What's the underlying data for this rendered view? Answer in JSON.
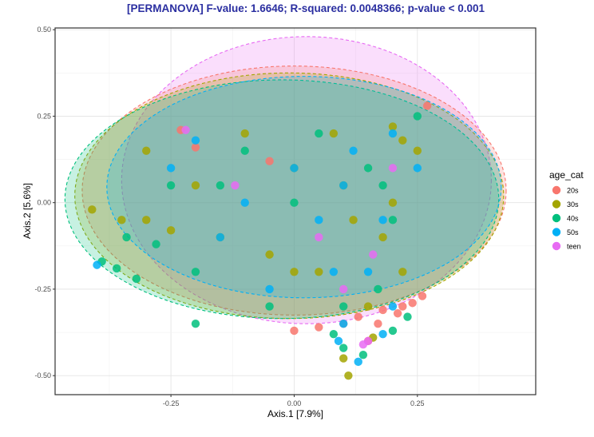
{
  "chart_data": {
    "type": "scatter",
    "title": "[PERMANOVA] F-value: 1.6646; R-squared: 0.0048366; p-value < 0.001",
    "xlabel": "Axis.1   [7.9%]",
    "ylabel": "Axis.2   [5.6%]",
    "xlim": [
      -0.485,
      0.49
    ],
    "ylim": [
      -0.555,
      0.505
    ],
    "xticks": [
      -0.25,
      0.0,
      0.25
    ],
    "xtick_labels": [
      "-0.25",
      "0.00",
      "0.25"
    ],
    "yticks": [
      -0.5,
      -0.25,
      0.0,
      0.25,
      0.5
    ],
    "ytick_labels": [
      "-0.50",
      "-0.25",
      "0.00",
      "0.25",
      "0.50"
    ],
    "grid": true,
    "legend": {
      "title": "age_cat",
      "position": "right",
      "entries": [
        {
          "label": "20s",
          "color": "#F8766D"
        },
        {
          "label": "30s",
          "color": "#A3A500"
        },
        {
          "label": "40s",
          "color": "#00BF7D"
        },
        {
          "label": "50s",
          "color": "#00B0F6"
        },
        {
          "label": "teen",
          "color": "#E76BF3"
        }
      ]
    },
    "ellipses": [
      {
        "group": "teen",
        "cx": 0.025,
        "cy": 0.065,
        "rx": 0.375,
        "ry": 0.415,
        "color": "#E76BF3"
      },
      {
        "group": "20s",
        "cx": 0.0,
        "cy": 0.035,
        "rx": 0.43,
        "ry": 0.36,
        "color": "#F8766D"
      },
      {
        "group": "30s",
        "cx": -0.01,
        "cy": 0.02,
        "rx": 0.435,
        "ry": 0.355,
        "color": "#A3A500"
      },
      {
        "group": "40s",
        "cx": -0.025,
        "cy": 0.01,
        "rx": 0.44,
        "ry": 0.345,
        "color": "#00BF7D"
      },
      {
        "group": "50s",
        "cx": 0.02,
        "cy": 0.045,
        "rx": 0.4,
        "ry": 0.32,
        "color": "#00B0F6"
      }
    ],
    "series": [
      {
        "group": "20s",
        "points": [
          [
            -0.23,
            0.21
          ],
          [
            0.24,
            -0.29
          ],
          [
            0.26,
            -0.27
          ],
          [
            0.22,
            -0.3
          ],
          [
            0.05,
            -0.36
          ],
          [
            0.13,
            -0.33
          ],
          [
            0.18,
            -0.31
          ],
          [
            0.1,
            -0.35
          ],
          [
            -0.2,
            0.16
          ],
          [
            0.0,
            -0.37
          ],
          [
            0.15,
            -0.4
          ],
          [
            0.27,
            0.28
          ],
          [
            0.21,
            -0.32
          ],
          [
            0.17,
            -0.35
          ],
          [
            -0.05,
            0.12
          ]
        ]
      },
      {
        "group": "30s",
        "points": [
          [
            -0.41,
            -0.02
          ],
          [
            -0.35,
            -0.05
          ],
          [
            -0.3,
            0.15
          ],
          [
            -0.2,
            0.05
          ],
          [
            -0.1,
            0.2
          ],
          [
            0.0,
            0.1
          ],
          [
            0.1,
            0.05
          ],
          [
            0.2,
            0.0
          ],
          [
            0.25,
            0.15
          ],
          [
            0.12,
            -0.05
          ],
          [
            -0.15,
            -0.1
          ],
          [
            0.05,
            -0.2
          ],
          [
            0.1,
            -0.45
          ],
          [
            0.11,
            -0.5
          ],
          [
            0.16,
            -0.39
          ],
          [
            0.2,
            0.22
          ],
          [
            0.22,
            0.18
          ],
          [
            -0.25,
            -0.08
          ],
          [
            0.15,
            -0.3
          ],
          [
            0.0,
            -0.2
          ],
          [
            -0.05,
            -0.15
          ],
          [
            0.18,
            -0.1
          ],
          [
            0.22,
            -0.2
          ],
          [
            -0.3,
            -0.05
          ],
          [
            0.08,
            0.2
          ]
        ]
      },
      {
        "group": "40s",
        "points": [
          [
            -0.39,
            -0.17
          ],
          [
            -0.36,
            -0.19
          ],
          [
            -0.32,
            -0.22
          ],
          [
            -0.2,
            -0.35
          ],
          [
            -0.34,
            -0.1
          ],
          [
            0.14,
            -0.44
          ],
          [
            0.2,
            -0.37
          ],
          [
            -0.1,
            0.15
          ],
          [
            0.05,
            0.2
          ],
          [
            -0.2,
            -0.2
          ],
          [
            0.1,
            -0.3
          ],
          [
            -0.15,
            0.05
          ],
          [
            0.15,
            0.1
          ],
          [
            0.25,
            0.25
          ],
          [
            0.2,
            -0.05
          ],
          [
            0.0,
            0.0
          ],
          [
            -0.28,
            -0.12
          ],
          [
            0.1,
            -0.42
          ],
          [
            0.17,
            -0.25
          ],
          [
            -0.05,
            -0.3
          ],
          [
            0.18,
            0.05
          ],
          [
            0.23,
            -0.33
          ],
          [
            -0.25,
            0.05
          ],
          [
            0.08,
            -0.38
          ]
        ]
      },
      {
        "group": "50s",
        "points": [
          [
            -0.4,
            -0.18
          ],
          [
            0.13,
            -0.46
          ],
          [
            0.09,
            -0.4
          ],
          [
            0.1,
            -0.35
          ],
          [
            -0.2,
            0.18
          ],
          [
            0.0,
            0.1
          ],
          [
            0.2,
            0.2
          ],
          [
            0.15,
            -0.2
          ],
          [
            -0.05,
            -0.25
          ],
          [
            0.1,
            0.05
          ],
          [
            -0.1,
            0.0
          ],
          [
            0.18,
            -0.05
          ],
          [
            0.25,
            0.1
          ],
          [
            0.12,
            0.15
          ],
          [
            -0.15,
            -0.1
          ],
          [
            0.05,
            -0.05
          ],
          [
            0.2,
            -0.3
          ],
          [
            0.08,
            -0.2
          ],
          [
            -0.25,
            0.1
          ],
          [
            0.18,
            -0.38
          ]
        ]
      },
      {
        "group": "teen",
        "points": [
          [
            0.14,
            -0.41
          ],
          [
            -0.22,
            0.21
          ],
          [
            0.15,
            -0.4
          ],
          [
            0.16,
            -0.15
          ],
          [
            0.05,
            -0.1
          ],
          [
            -0.12,
            0.05
          ],
          [
            0.2,
            0.1
          ],
          [
            0.1,
            -0.25
          ]
        ]
      }
    ]
  }
}
